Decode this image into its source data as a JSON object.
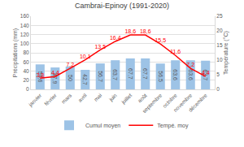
{
  "chart_data": {
    "type": "bar",
    "title": "Cambrai-Epinoy (1991-2020)",
    "categories": [
      "janvier",
      "février",
      "mars",
      "avril",
      "mai",
      "juin",
      "juillet",
      "août",
      "septembre",
      "octobre",
      "novembre",
      "décembre"
    ],
    "series": [
      {
        "name": "Cumul moyen",
        "type": "bar",
        "color": "#9dc3e6",
        "values": [
          54.6,
          47.9,
          50,
          42.7,
          56.7,
          63.7,
          67.7,
          67.7,
          56.5,
          63.6,
          63.6,
          62.7
        ],
        "value_labels": [
          "54,6",
          "47,9",
          "50",
          "42,7",
          "56,7",
          "63,7",
          "67,7",
          "67,7",
          "56,5",
          "63,6",
          "63,6",
          "62,7"
        ]
      },
      {
        "name": "Tempé. moy",
        "type": "line",
        "color": "#ff0000",
        "axis": "y2",
        "values": [
          3.8,
          4.4,
          7.2,
          10.1,
          13.5,
          16.4,
          18.6,
          18.6,
          15.5,
          11.6,
          7.2,
          4.4
        ],
        "value_labels": [
          "3,8",
          "4,4",
          "7,2",
          "10,1",
          "13,5",
          "16,4",
          "18,6",
          "18,6",
          "15,5",
          "11,6",
          "7,2",
          "4,4"
        ]
      }
    ],
    "y_label": "Précipitations (mm)",
    "y2_label": "Température (°C)",
    "ylim": [
      0,
      160
    ],
    "yticks": [
      0,
      20,
      40,
      60,
      80,
      100,
      120,
      140,
      160
    ],
    "y2lim": [
      0,
      25
    ],
    "y2ticks": [
      0,
      5,
      10,
      15,
      20,
      25
    ],
    "grid": true,
    "data_labels": true,
    "legend": "bottom"
  }
}
